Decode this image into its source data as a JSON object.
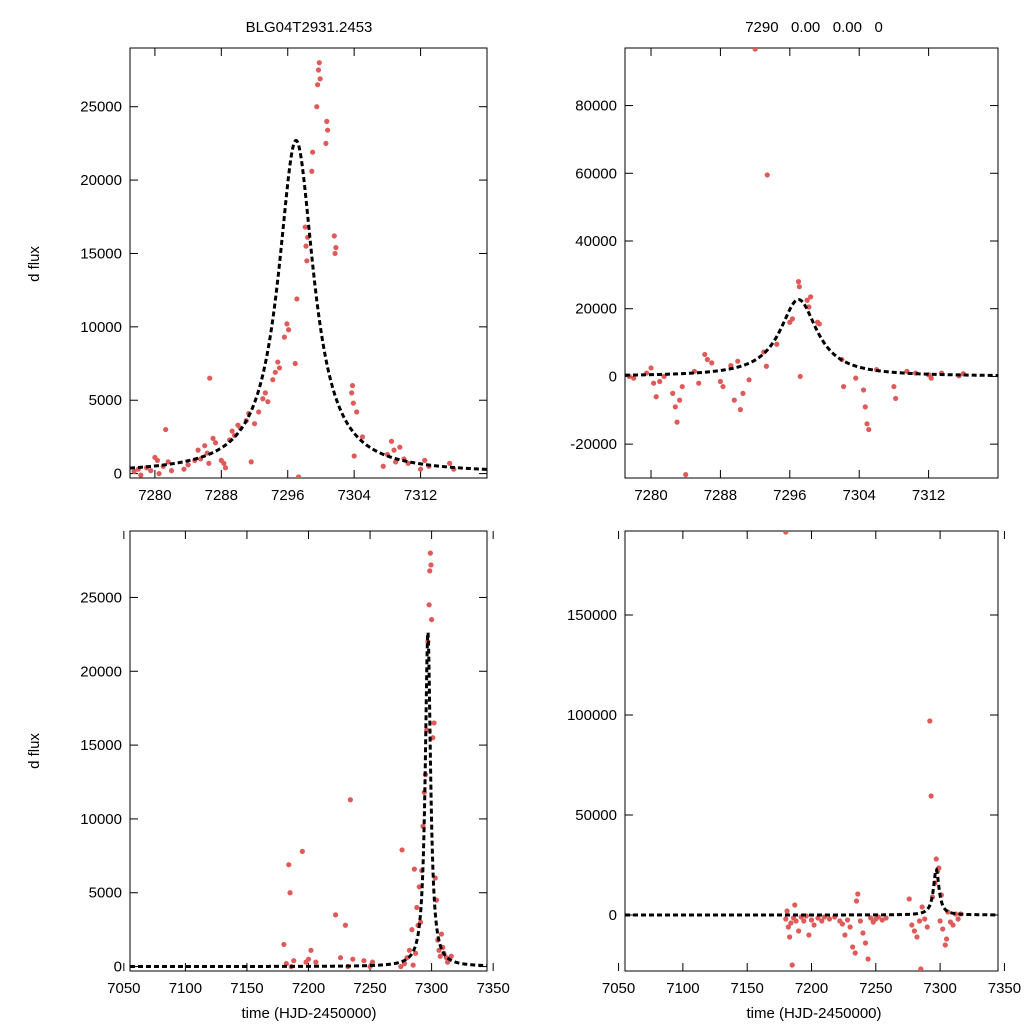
{
  "figure": {
    "title_left": "BLG04T2931.2453",
    "title_right": "7290   0.00   0.00   0",
    "ylabel": "d flux",
    "xlabel": "time (HJD-2450000)"
  },
  "colors": {
    "data_points": "#e05a5a",
    "model_line": "#000000",
    "frame": "#000000"
  },
  "chart_data": [
    {
      "id": "top-left",
      "type": "scatter",
      "xlim": [
        7277,
        7320
      ],
      "ylim": [
        -300,
        29000
      ],
      "xticks": [
        7280,
        7288,
        7296,
        7304,
        7312
      ],
      "yticks": [
        0,
        5000,
        10000,
        15000,
        20000,
        25000
      ],
      "ylabel": "d flux",
      "title": "BLG04T2931.2453",
      "model": {
        "t0": 7297.0,
        "amp": 22700,
        "tau": 2.6
      },
      "points": [
        [
          7277.5,
          150
        ],
        [
          7278.0,
          300
        ],
        [
          7278.3,
          -100
        ],
        [
          7279.0,
          400
        ],
        [
          7279.5,
          200
        ],
        [
          7280.0,
          1100
        ],
        [
          7280.3,
          900
        ],
        [
          7280.5,
          0
        ],
        [
          7281.0,
          500
        ],
        [
          7281.3,
          3000
        ],
        [
          7281.6,
          800
        ],
        [
          7282.0,
          200
        ],
        [
          7283.5,
          300
        ],
        [
          7284.0,
          600
        ],
        [
          7284.8,
          900
        ],
        [
          7285.2,
          1600
        ],
        [
          7285.5,
          1000
        ],
        [
          7286.0,
          1900
        ],
        [
          7286.3,
          1400
        ],
        [
          7286.5,
          700
        ],
        [
          7286.6,
          6500
        ],
        [
          7287.0,
          2400
        ],
        [
          7287.3,
          2100
        ],
        [
          7288.0,
          900
        ],
        [
          7288.3,
          700
        ],
        [
          7288.5,
          400
        ],
        [
          7289.0,
          2300
        ],
        [
          7289.3,
          2900
        ],
        [
          7289.6,
          2600
        ],
        [
          7290.0,
          3300
        ],
        [
          7290.3,
          3100
        ],
        [
          7291.0,
          3600
        ],
        [
          7291.3,
          4100
        ],
        [
          7291.6,
          800
        ],
        [
          7292.0,
          3400
        ],
        [
          7292.5,
          4200
        ],
        [
          7293.0,
          5100
        ],
        [
          7293.3,
          5500
        ],
        [
          7293.6,
          4900
        ],
        [
          7294.2,
          6400
        ],
        [
          7294.5,
          6900
        ],
        [
          7294.8,
          7600
        ],
        [
          7295.0,
          7200
        ],
        [
          7295.6,
          9300
        ],
        [
          7295.9,
          10200
        ],
        [
          7296.1,
          9800
        ],
        [
          7296.9,
          7500
        ],
        [
          7297.1,
          11900
        ],
        [
          7297.3,
          -300
        ],
        [
          7298.1,
          16800
        ],
        [
          7298.2,
          15500
        ],
        [
          7298.3,
          14500
        ],
        [
          7298.4,
          16100
        ],
        [
          7298.9,
          20600
        ],
        [
          7299.0,
          21900
        ],
        [
          7299.5,
          25000
        ],
        [
          7299.6,
          26500
        ],
        [
          7299.7,
          27500
        ],
        [
          7299.8,
          28000
        ],
        [
          7299.9,
          26900
        ],
        [
          7300.6,
          22500
        ],
        [
          7300.8,
          23400
        ],
        [
          7300.7,
          24000
        ],
        [
          7301.6,
          16200
        ],
        [
          7301.8,
          15400
        ],
        [
          7301.7,
          15000
        ],
        [
          7303.7,
          5500
        ],
        [
          7303.8,
          6000
        ],
        [
          7303.9,
          4800
        ],
        [
          7304.0,
          1200
        ],
        [
          7304.3,
          4200
        ],
        [
          7305.0,
          2500
        ],
        [
          7307.5,
          500
        ],
        [
          7308.0,
          1300
        ],
        [
          7308.5,
          2200
        ],
        [
          7308.8,
          1600
        ],
        [
          7309.0,
          800
        ],
        [
          7309.5,
          1800
        ],
        [
          7310.0,
          1000
        ],
        [
          7310.5,
          700
        ],
        [
          7312.0,
          300
        ],
        [
          7312.5,
          900
        ],
        [
          7313.0,
          500
        ],
        [
          7315.5,
          700
        ],
        [
          7316.0,
          300
        ]
      ]
    },
    {
      "id": "top-right",
      "type": "scatter",
      "xlim": [
        7277,
        7320
      ],
      "ylim": [
        -30000,
        97000
      ],
      "xticks": [
        7280,
        7288,
        7296,
        7304,
        7312
      ],
      "yticks": [
        -20000,
        0,
        20000,
        40000,
        60000,
        80000
      ],
      "title": "7290   0.00   0.00   0",
      "model": {
        "t0": 7297.0,
        "amp": 22700,
        "tau": 2.6
      },
      "points": [
        [
          7277.5,
          0
        ],
        [
          7278.0,
          -500
        ],
        [
          7279.5,
          1000
        ],
        [
          7280.0,
          2500
        ],
        [
          7280.3,
          -2000
        ],
        [
          7280.6,
          -6000
        ],
        [
          7281.0,
          -1500
        ],
        [
          7281.5,
          0
        ],
        [
          7282.5,
          -5000
        ],
        [
          7282.8,
          -9000
        ],
        [
          7283.0,
          -13500
        ],
        [
          7283.3,
          -7000
        ],
        [
          7283.6,
          -3000
        ],
        [
          7284.0,
          -29000
        ],
        [
          7285.0,
          1500
        ],
        [
          7285.5,
          -2000
        ],
        [
          7286.2,
          6500
        ],
        [
          7286.5,
          5000
        ],
        [
          7287.0,
          4000
        ],
        [
          7288.0,
          -1500
        ],
        [
          7288.3,
          -3000
        ],
        [
          7289.2,
          3200
        ],
        [
          7289.6,
          -7000
        ],
        [
          7290.0,
          4500
        ],
        [
          7290.3,
          -9800
        ],
        [
          7290.6,
          -5000
        ],
        [
          7291.3,
          -1000
        ],
        [
          7293.0,
          7200
        ],
        [
          7293.3,
          3000
        ],
        [
          7294.5,
          9500
        ],
        [
          7296.0,
          16000
        ],
        [
          7296.3,
          17000
        ],
        [
          7297.0,
          28000
        ],
        [
          7297.1,
          26500
        ],
        [
          7297.2,
          0
        ],
        [
          7298.0,
          22500
        ],
        [
          7298.2,
          20500
        ],
        [
          7298.4,
          23500
        ],
        [
          7299.2,
          16000
        ],
        [
          7299.4,
          15500
        ],
        [
          7302.0,
          5000
        ],
        [
          7302.2,
          -3000
        ],
        [
          7303.6,
          -500
        ],
        [
          7304.5,
          -4000
        ],
        [
          7304.7,
          -9000
        ],
        [
          7304.9,
          -14000
        ],
        [
          7305.1,
          -15700
        ],
        [
          7306.0,
          2000
        ],
        [
          7308.0,
          -3000
        ],
        [
          7308.2,
          -6500
        ],
        [
          7309.5,
          1500
        ],
        [
          7310.5,
          1000
        ],
        [
          7312.0,
          500
        ],
        [
          7312.3,
          -500
        ],
        [
          7313.5,
          1000
        ],
        [
          7315.5,
          200
        ],
        [
          7316.0,
          800
        ],
        [
          7292.0,
          97000
        ],
        [
          7293.4,
          59500
        ]
      ]
    },
    {
      "id": "bottom-left",
      "type": "scatter",
      "xlim": [
        7055,
        7345
      ],
      "ylim": [
        -300,
        29500
      ],
      "xticks": [
        7050,
        7100,
        7150,
        7200,
        7250,
        7300,
        7350
      ],
      "yticks": [
        0,
        5000,
        10000,
        15000,
        20000,
        25000
      ],
      "ylabel": "d flux",
      "xlabel": "time (HJD-2450000)",
      "model": {
        "t0": 7297.0,
        "amp": 22700,
        "tau": 2.6
      },
      "points": [
        [
          7180,
          1500
        ],
        [
          7182,
          200
        ],
        [
          7184,
          6900
        ],
        [
          7185,
          5000
        ],
        [
          7186,
          0
        ],
        [
          7188,
          400
        ],
        [
          7195,
          7800
        ],
        [
          7198,
          300
        ],
        [
          7200,
          500
        ],
        [
          7202,
          1100
        ],
        [
          7206,
          300
        ],
        [
          7222,
          3500
        ],
        [
          7226,
          600
        ],
        [
          7230,
          2800
        ],
        [
          7232,
          0
        ],
        [
          7234,
          11300
        ],
        [
          7236,
          500
        ],
        [
          7245,
          400
        ],
        [
          7250,
          0
        ],
        [
          7252,
          300
        ],
        [
          7276,
          7900
        ],
        [
          7278,
          200
        ],
        [
          7280,
          600
        ],
        [
          7282,
          1100
        ],
        [
          7284,
          2500
        ],
        [
          7286,
          6600
        ],
        [
          7288,
          4000
        ],
        [
          7289,
          2800
        ],
        [
          7290,
          5400
        ],
        [
          7291,
          3000
        ],
        [
          7292,
          6500
        ],
        [
          7293,
          9500
        ],
        [
          7294,
          11800
        ],
        [
          7295,
          13000
        ],
        [
          7296,
          16000
        ],
        [
          7297,
          22000
        ],
        [
          7298,
          24500
        ],
        [
          7298.5,
          26800
        ],
        [
          7299,
          28000
        ],
        [
          7299.5,
          27200
        ],
        [
          7300,
          23500
        ],
        [
          7301,
          15500
        ],
        [
          7302,
          16500
        ],
        [
          7303,
          6000
        ],
        [
          7304,
          4500
        ],
        [
          7305,
          1800
        ],
        [
          7306,
          1100
        ],
        [
          7307,
          700
        ],
        [
          7308,
          2200
        ],
        [
          7309,
          1300
        ],
        [
          7310,
          900
        ],
        [
          7312,
          600
        ],
        [
          7313,
          300
        ],
        [
          7316,
          700
        ],
        [
          7275,
          0
        ],
        [
          7285,
          100
        ],
        [
          7287,
          900
        ]
      ]
    },
    {
      "id": "bottom-right",
      "type": "scatter",
      "xlim": [
        7055,
        7345
      ],
      "ylim": [
        -28000,
        192000
      ],
      "xticks": [
        7050,
        7100,
        7150,
        7200,
        7250,
        7300,
        7350
      ],
      "yticks": [
        0,
        50000,
        100000,
        150000
      ],
      "xlabel": "time (HJD-2450000)",
      "model": {
        "t0": 7297.0,
        "amp": 22700,
        "tau": 2.6
      },
      "points": [
        [
          7180,
          -2000
        ],
        [
          7181,
          2000
        ],
        [
          7182,
          -6000
        ],
        [
          7183,
          -11000
        ],
        [
          7184,
          -4000
        ],
        [
          7185,
          -25000
        ],
        [
          7186,
          -1500
        ],
        [
          7187,
          5000
        ],
        [
          7188,
          -3000
        ],
        [
          7190,
          -8000
        ],
        [
          7192,
          -1000
        ],
        [
          7194,
          -3000
        ],
        [
          7196,
          -500
        ],
        [
          7198,
          -10000
        ],
        [
          7200,
          -2500
        ],
        [
          7202,
          -5000
        ],
        [
          7205,
          -1500
        ],
        [
          7208,
          -3000
        ],
        [
          7210,
          -1000
        ],
        [
          7214,
          -2000
        ],
        [
          7218,
          -1000
        ],
        [
          7222,
          -3000
        ],
        [
          7224,
          -4500
        ],
        [
          7226,
          -10000
        ],
        [
          7228,
          -2500
        ],
        [
          7230,
          -6000
        ],
        [
          7232,
          -16000
        ],
        [
          7234,
          -19000
        ],
        [
          7235,
          7000
        ],
        [
          7236,
          10500
        ],
        [
          7238,
          -3000
        ],
        [
          7240,
          -9000
        ],
        [
          7242,
          -14000
        ],
        [
          7244,
          -22000
        ],
        [
          7246,
          -1500
        ],
        [
          7248,
          -3500
        ],
        [
          7250,
          -2000
        ],
        [
          7252,
          -1000
        ],
        [
          7255,
          -2500
        ],
        [
          7258,
          -1500
        ],
        [
          7276,
          8000
        ],
        [
          7278,
          -5000
        ],
        [
          7280,
          -8000
        ],
        [
          7282,
          -11000
        ],
        [
          7284,
          -3000
        ],
        [
          7285,
          -27000
        ],
        [
          7286,
          4000
        ],
        [
          7288,
          -2000
        ],
        [
          7290,
          -6000
        ],
        [
          7292,
          97000
        ],
        [
          7293,
          59500
        ],
        [
          7294,
          9000
        ],
        [
          7296,
          16000
        ],
        [
          7297,
          28000
        ],
        [
          7298,
          22000
        ],
        [
          7299,
          23500
        ],
        [
          7300,
          -3000
        ],
        [
          7301,
          10000
        ],
        [
          7302,
          -7000
        ],
        [
          7304,
          -15000
        ],
        [
          7305,
          -12000
        ],
        [
          7306,
          1500
        ],
        [
          7308,
          -3500
        ],
        [
          7310,
          -5000
        ],
        [
          7312,
          500
        ],
        [
          7314,
          -2000
        ],
        [
          7316,
          500
        ],
        [
          7180,
          192000
        ]
      ]
    }
  ]
}
